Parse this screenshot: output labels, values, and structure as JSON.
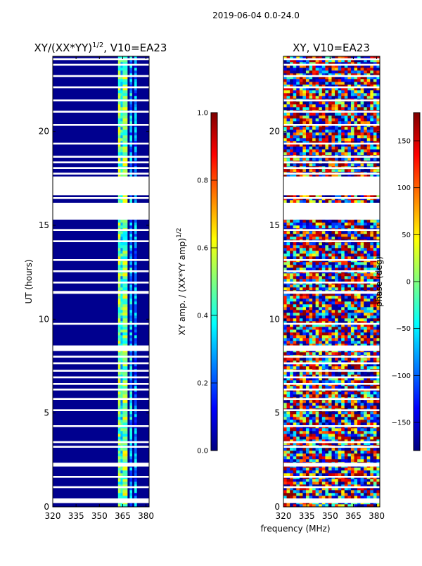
{
  "suptitle": "2019-06-04 0.0-24.0",
  "shared_xlabel": "frequency (MHz)",
  "colors": {
    "bg_amp": "#00008f",
    "band": "#5cffa2",
    "jet": [
      "#00007f",
      "#0000ff",
      "#007fff",
      "#00ffff",
      "#7fff7f",
      "#ffff00",
      "#ff7f00",
      "#ff0000",
      "#7f0000"
    ]
  },
  "chart_data": [
    {
      "type": "heatmap",
      "title_main": "XY/(XX*YY)",
      "title_sup": "1/2",
      "title_tail": ", V10=EA23",
      "xlabel": "",
      "ylabel": "UT (hours)",
      "xlim": [
        320,
        382
      ],
      "ylim": [
        0,
        24
      ],
      "xticks": [
        320,
        335,
        350,
        365,
        380
      ],
      "yticks": [
        0,
        5,
        10,
        15,
        20
      ],
      "gaps_ut": [
        [
          0.2,
          0.45
        ],
        [
          1.0,
          1.1
        ],
        [
          1.55,
          1.65
        ],
        [
          2.15,
          2.35
        ],
        [
          3.15,
          3.25
        ],
        [
          3.4,
          3.5
        ],
        [
          4.25,
          4.35
        ],
        [
          5.1,
          5.2
        ],
        [
          5.7,
          5.8
        ],
        [
          6.2,
          6.3
        ],
        [
          6.5,
          6.6
        ],
        [
          6.85,
          6.95
        ],
        [
          7.2,
          7.3
        ],
        [
          7.6,
          7.7
        ],
        [
          7.95,
          8.05
        ],
        [
          8.3,
          8.6
        ],
        [
          9.7,
          9.8
        ],
        [
          11.35,
          11.5
        ],
        [
          11.9,
          12.0
        ],
        [
          12.5,
          12.6
        ],
        [
          13.1,
          13.2
        ],
        [
          14.1,
          14.2
        ],
        [
          14.7,
          14.8
        ],
        [
          15.3,
          16.2
        ],
        [
          16.4,
          16.5
        ],
        [
          16.6,
          17.6
        ],
        [
          17.7,
          17.8
        ],
        [
          18.0,
          18.1
        ],
        [
          18.3,
          18.4
        ],
        [
          18.6,
          18.7
        ],
        [
          19.3,
          19.4
        ],
        [
          20.3,
          20.4
        ],
        [
          21.0,
          21.1
        ],
        [
          21.6,
          21.7
        ],
        [
          22.3,
          22.4
        ],
        [
          22.9,
          23.0
        ],
        [
          23.5,
          23.6
        ],
        [
          23.8,
          23.9
        ]
      ],
      "bright_band_mhz": [
        362,
        368
      ],
      "colorbar": {
        "label_main": "XY amp. / (XX*YY amp)",
        "label_sup": "1/2",
        "ticks": [
          0.0,
          0.2,
          0.4,
          0.6,
          0.8,
          1.0
        ],
        "tick_labels": [
          "0.0",
          "0.2",
          "0.4",
          "0.6",
          "0.8",
          "1.0"
        ],
        "range": [
          0.0,
          1.0
        ]
      }
    },
    {
      "type": "heatmap",
      "title_main": "XY, V10=EA23",
      "xlabel": "frequency (MHz)",
      "ylabel": "",
      "xlim": [
        320,
        382
      ],
      "ylim": [
        0,
        24
      ],
      "xticks": [
        320,
        335,
        350,
        365,
        380
      ],
      "yticks": [
        0,
        5,
        10,
        15,
        20
      ],
      "gaps_ut": [
        [
          0.2,
          0.45
        ],
        [
          1.0,
          1.1
        ],
        [
          1.55,
          1.65
        ],
        [
          2.15,
          2.35
        ],
        [
          3.15,
          3.25
        ],
        [
          3.4,
          3.5
        ],
        [
          4.25,
          4.35
        ],
        [
          5.1,
          5.2
        ],
        [
          5.7,
          5.8
        ],
        [
          6.2,
          6.3
        ],
        [
          6.5,
          6.6
        ],
        [
          6.85,
          6.95
        ],
        [
          7.2,
          7.3
        ],
        [
          7.6,
          7.7
        ],
        [
          7.95,
          8.05
        ],
        [
          8.3,
          8.6
        ],
        [
          9.7,
          9.8
        ],
        [
          11.35,
          11.5
        ],
        [
          11.9,
          12.0
        ],
        [
          12.5,
          12.6
        ],
        [
          13.1,
          13.2
        ],
        [
          14.1,
          14.2
        ],
        [
          14.7,
          14.8
        ],
        [
          15.3,
          16.2
        ],
        [
          16.4,
          16.5
        ],
        [
          16.6,
          17.6
        ],
        [
          17.7,
          17.8
        ],
        [
          18.0,
          18.1
        ],
        [
          18.3,
          18.4
        ],
        [
          18.6,
          18.7
        ],
        [
          19.3,
          19.4
        ],
        [
          20.3,
          20.4
        ],
        [
          21.0,
          21.1
        ],
        [
          21.6,
          21.7
        ],
        [
          22.3,
          22.4
        ],
        [
          22.9,
          23.0
        ],
        [
          23.5,
          23.6
        ],
        [
          23.8,
          23.9
        ]
      ],
      "colorbar": {
        "label_main": "phase (deg)",
        "ticks": [
          -150,
          -100,
          -50,
          0,
          50,
          100,
          150
        ],
        "tick_labels": [
          "−150",
          "−100",
          "−50",
          "0",
          "50",
          "100",
          "150"
        ],
        "range": [
          -180,
          180
        ]
      }
    }
  ]
}
